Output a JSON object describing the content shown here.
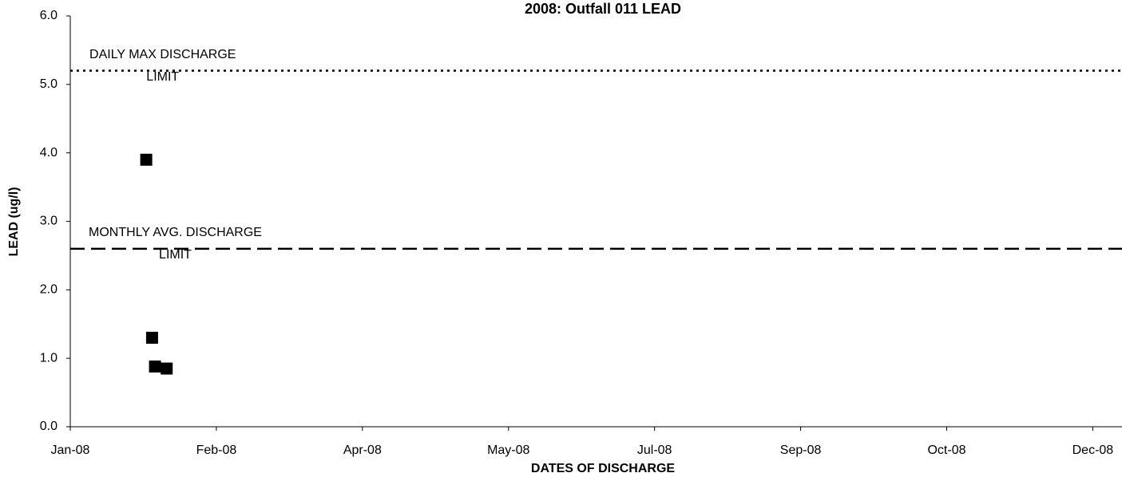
{
  "chart_data": {
    "type": "scatter",
    "title": "2008: Outfall 011 LEAD",
    "xlabel": "DATES OF DISCHARGE",
    "ylabel": "LEAD (ug/l)",
    "series": [
      {
        "name": "LEAD",
        "color": "#000000",
        "x": [
          39474,
          39476,
          39477,
          39481
        ],
        "values": [
          3.9,
          1.3,
          0.88,
          0.85
        ]
      }
    ],
    "reference_lines": [
      {
        "value": 5.2,
        "style": "dotted",
        "label": [
          "DAILY MAX DISCHARGE",
          "LIMIT"
        ]
      },
      {
        "value": 2.6,
        "style": "dashed",
        "label": [
          "MONTHLY AVG. DISCHARGE",
          "LIMIT"
        ]
      }
    ],
    "xlim": [
      39448,
      39808
    ],
    "xticks": [
      {
        "value": 39448,
        "label": "Jan-08"
      },
      {
        "value": 39498,
        "label": "Feb-08"
      },
      {
        "value": 39548,
        "label": "Apr-08"
      },
      {
        "value": 39598,
        "label": "May-08"
      },
      {
        "value": 39648,
        "label": "Jul-08"
      },
      {
        "value": 39698,
        "label": "Sep-08"
      },
      {
        "value": 39748,
        "label": "Oct-08"
      },
      {
        "value": 39798,
        "label": "Dec-08"
      }
    ],
    "ylim": [
      0,
      6
    ],
    "yticks": [
      {
        "value": 0,
        "label": "0.0"
      },
      {
        "value": 1,
        "label": "1.0"
      },
      {
        "value": 2,
        "label": "2.0"
      },
      {
        "value": 3,
        "label": "3.0"
      },
      {
        "value": 4,
        "label": "4.0"
      },
      {
        "value": 5,
        "label": "5.0"
      },
      {
        "value": 6,
        "label": "6.0"
      }
    ],
    "grid": false
  }
}
